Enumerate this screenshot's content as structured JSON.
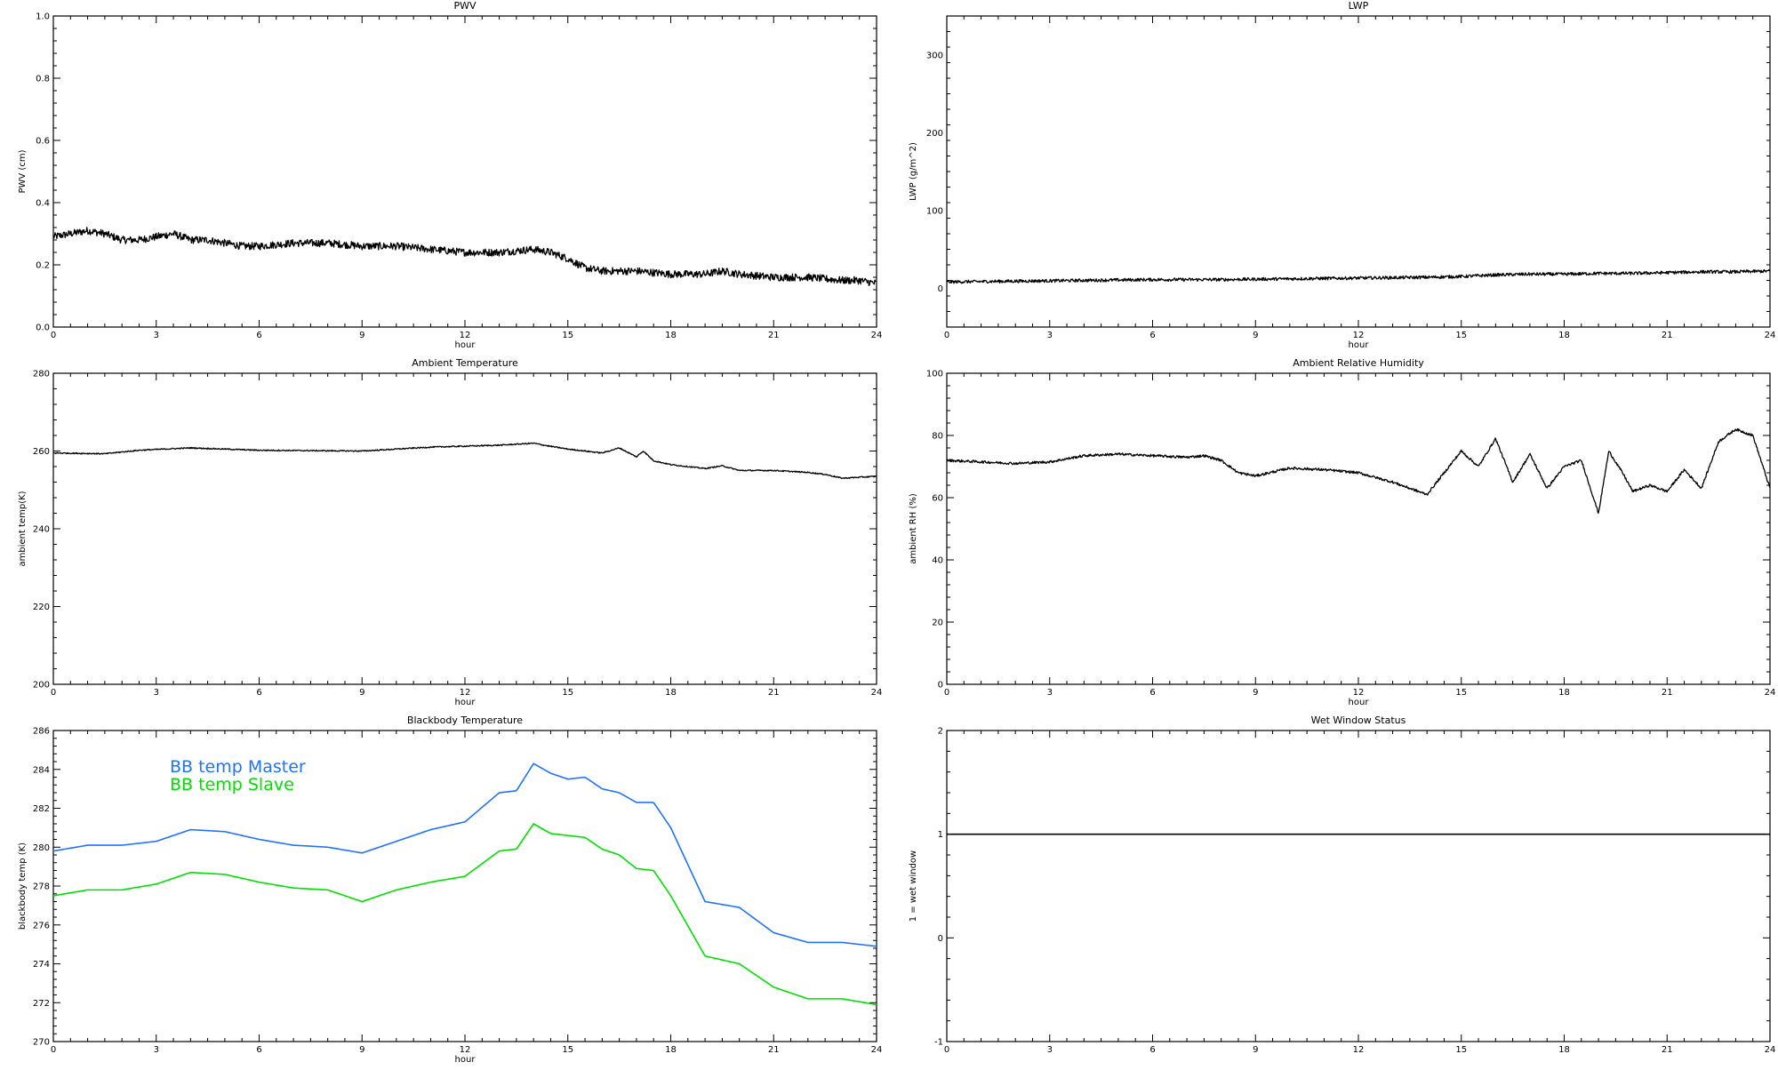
{
  "page": {
    "background": "#ffffff"
  },
  "chart_data": [
    {
      "id": "pwv",
      "type": "line",
      "title": "PWV",
      "xlabel": "hour",
      "ylabel": "PWV (cm)",
      "xlim": [
        0,
        24
      ],
      "ylim": [
        0.0,
        1.0
      ],
      "xticks": [
        0,
        3,
        6,
        9,
        12,
        15,
        18,
        21,
        24
      ],
      "yticks": [
        0.0,
        0.2,
        0.4,
        0.6,
        0.8,
        1.0
      ],
      "ytick_labels": [
        "0.0",
        "0.2",
        "0.4",
        "0.6",
        "0.8",
        "1.0"
      ],
      "xtick_labels": [
        "0",
        "3",
        "6",
        "9",
        "12",
        "15",
        "18",
        "21",
        "24"
      ],
      "grid": false,
      "noise": 0.012,
      "series": [
        {
          "color": "#000000",
          "x": [
            0,
            0.5,
            1,
            1.5,
            2,
            2.5,
            3,
            3.5,
            4,
            4.5,
            5,
            5.5,
            6,
            7,
            8,
            9,
            10,
            11,
            12,
            13,
            14,
            14.5,
            15,
            15.5,
            16,
            17,
            18,
            19,
            19.5,
            20,
            21,
            22,
            23,
            23.5,
            24
          ],
          "y": [
            0.29,
            0.3,
            0.31,
            0.3,
            0.28,
            0.28,
            0.29,
            0.3,
            0.28,
            0.28,
            0.27,
            0.26,
            0.26,
            0.27,
            0.27,
            0.26,
            0.26,
            0.25,
            0.24,
            0.24,
            0.25,
            0.24,
            0.22,
            0.19,
            0.18,
            0.18,
            0.17,
            0.17,
            0.18,
            0.17,
            0.16,
            0.16,
            0.15,
            0.15,
            0.14
          ]
        }
      ]
    },
    {
      "id": "lwp",
      "type": "line",
      "title": "LWP",
      "xlabel": "hour",
      "ylabel": "LWP (g/m^2)",
      "xlim": [
        0,
        24
      ],
      "ylim": [
        -50,
        350
      ],
      "xticks": [
        0,
        3,
        6,
        9,
        12,
        15,
        18,
        21,
        24
      ],
      "yticks": [
        0,
        100,
        200,
        300
      ],
      "ytick_labels": [
        "0",
        "100",
        "200",
        "300"
      ],
      "xtick_labels": [
        "0",
        "3",
        "6",
        "9",
        "12",
        "15",
        "18",
        "21",
        "24"
      ],
      "grid": false,
      "noise": 2.0,
      "series": [
        {
          "color": "#000000",
          "x": [
            0,
            2,
            4,
            6,
            8,
            10,
            12,
            14,
            15,
            16,
            17,
            18,
            19,
            20,
            21,
            22,
            23,
            24
          ],
          "y": [
            8,
            9,
            10,
            11,
            11,
            12,
            13,
            14,
            15,
            17,
            18,
            18,
            19,
            19,
            20,
            21,
            21,
            22
          ]
        }
      ]
    },
    {
      "id": "ambient-temp",
      "type": "line",
      "title": "Ambient Temperature",
      "xlabel": "hour",
      "ylabel": "ambient temp(K)",
      "xlim": [
        0,
        24
      ],
      "ylim": [
        200,
        280
      ],
      "xticks": [
        0,
        3,
        6,
        9,
        12,
        15,
        18,
        21,
        24
      ],
      "yticks": [
        200,
        220,
        240,
        260,
        280
      ],
      "ytick_labels": [
        "200",
        "220",
        "240",
        "260",
        "280"
      ],
      "xtick_labels": [
        "0",
        "3",
        "6",
        "9",
        "12",
        "15",
        "18",
        "21",
        "24"
      ],
      "grid": false,
      "noise": 0.15,
      "series": [
        {
          "color": "#000000",
          "x": [
            0,
            1.5,
            2.5,
            4,
            6,
            9,
            11,
            13,
            14,
            14.5,
            15,
            16,
            16.5,
            17,
            17.2,
            17.5,
            18,
            19,
            19.5,
            20,
            21,
            22,
            22.5,
            23,
            24
          ],
          "y": [
            259.5,
            259.3,
            260.2,
            260.8,
            260.2,
            260.0,
            261.0,
            261.5,
            262.0,
            261.2,
            260.5,
            259.5,
            260.8,
            258.5,
            260.0,
            257.5,
            256.5,
            255.5,
            256.2,
            255.0,
            255.0,
            254.5,
            254.0,
            253.0,
            253.5
          ]
        }
      ]
    },
    {
      "id": "ambient-rh",
      "type": "line",
      "title": "Ambient Relative Humidity",
      "xlabel": "hour",
      "ylabel": "ambient RH (%)",
      "xlim": [
        0,
        24
      ],
      "ylim": [
        0,
        100
      ],
      "xticks": [
        0,
        3,
        6,
        9,
        12,
        15,
        18,
        21,
        24
      ],
      "yticks": [
        0,
        20,
        40,
        60,
        80,
        100
      ],
      "ytick_labels": [
        "0",
        "20",
        "40",
        "60",
        "80",
        "100"
      ],
      "xtick_labels": [
        "0",
        "3",
        "6",
        "9",
        "12",
        "15",
        "18",
        "21",
        "24"
      ],
      "grid": false,
      "noise": 0.4,
      "series": [
        {
          "color": "#000000",
          "x": [
            0,
            1,
            2,
            3,
            4,
            5,
            6,
            7,
            7.5,
            8,
            8.5,
            9,
            10,
            11,
            12,
            13,
            13.5,
            14,
            14.5,
            15,
            15.5,
            16,
            16.5,
            17,
            17.5,
            18,
            18.5,
            19,
            19.3,
            19.7,
            20,
            20.5,
            21,
            21.5,
            22,
            22.5,
            23,
            23.5,
            24
          ],
          "y": [
            72,
            71.5,
            71,
            71.5,
            73.5,
            74,
            73.5,
            73,
            73.5,
            72,
            68,
            67,
            69.5,
            69,
            68,
            65,
            63,
            61,
            68,
            75,
            70,
            79,
            65,
            74,
            63,
            70,
            72,
            55,
            75,
            68,
            62,
            64,
            62,
            69,
            63,
            78,
            82,
            80,
            63
          ]
        }
      ]
    },
    {
      "id": "bb-temp",
      "type": "line",
      "title": "Blackbody Temperature",
      "xlabel": "hour",
      "ylabel": "blackbody temp (K)",
      "xlim": [
        0,
        24
      ],
      "ylim": [
        270,
        286
      ],
      "xticks": [
        0,
        3,
        6,
        9,
        12,
        15,
        18,
        21,
        24
      ],
      "yticks": [
        270,
        272,
        274,
        276,
        278,
        280,
        282,
        284,
        286
      ],
      "ytick_labels": [
        "270",
        "272",
        "274",
        "276",
        "278",
        "280",
        "282",
        "284",
        "286"
      ],
      "xtick_labels": [
        "0",
        "3",
        "6",
        "9",
        "12",
        "15",
        "18",
        "21",
        "24"
      ],
      "grid": false,
      "noise": 0.0,
      "legend": {
        "placement": "top-left"
      },
      "series": [
        {
          "name": "BB temp Master",
          "color": "#1e73ff",
          "x": [
            0,
            1,
            2,
            3,
            4,
            5,
            6,
            7,
            8,
            9,
            10,
            11,
            12,
            13,
            13.5,
            14,
            14.5,
            15,
            15.5,
            16,
            16.5,
            17,
            17.5,
            18,
            19,
            20,
            21,
            22,
            23,
            24
          ],
          "y": [
            279.8,
            280.1,
            280.1,
            280.3,
            280.9,
            280.8,
            280.4,
            280.1,
            280.0,
            279.7,
            280.3,
            280.9,
            281.3,
            282.8,
            282.9,
            284.3,
            283.8,
            283.5,
            283.6,
            283.0,
            282.8,
            282.3,
            282.3,
            281.0,
            277.2,
            276.9,
            275.6,
            275.1,
            275.1,
            274.9
          ]
        },
        {
          "name": "BB temp Slave",
          "color": "#00e000",
          "x": [
            0,
            1,
            2,
            3,
            4,
            5,
            6,
            7,
            8,
            9,
            10,
            11,
            12,
            13,
            13.5,
            14,
            14.5,
            15,
            15.5,
            16,
            16.5,
            17,
            17.5,
            18,
            19,
            20,
            21,
            22,
            23,
            24
          ],
          "y": [
            277.5,
            277.8,
            277.8,
            278.1,
            278.7,
            278.6,
            278.2,
            277.9,
            277.8,
            277.2,
            277.8,
            278.2,
            278.5,
            279.8,
            279.9,
            281.2,
            280.7,
            280.6,
            280.5,
            279.9,
            279.6,
            278.9,
            278.8,
            277.5,
            274.4,
            274.0,
            272.8,
            272.2,
            272.2,
            271.9
          ]
        }
      ]
    },
    {
      "id": "wet-window",
      "type": "line",
      "title": "Wet Window Status",
      "xlabel": "",
      "ylabel": "1 = wet window",
      "xlim": [
        0,
        24
      ],
      "ylim": [
        -1,
        2
      ],
      "xticks": [
        0,
        3,
        6,
        9,
        12,
        15,
        18,
        21,
        24
      ],
      "yticks": [
        -1,
        0,
        1,
        2
      ],
      "ytick_labels": [
        "-1",
        "0",
        "1",
        "2"
      ],
      "xtick_labels": [
        "0",
        "3",
        "6",
        "9",
        "12",
        "15",
        "18",
        "21",
        "24"
      ],
      "grid": false,
      "noise": 0.0,
      "series": [
        {
          "color": "#000000",
          "x": [
            0,
            24
          ],
          "y": [
            1,
            1
          ]
        }
      ]
    }
  ]
}
